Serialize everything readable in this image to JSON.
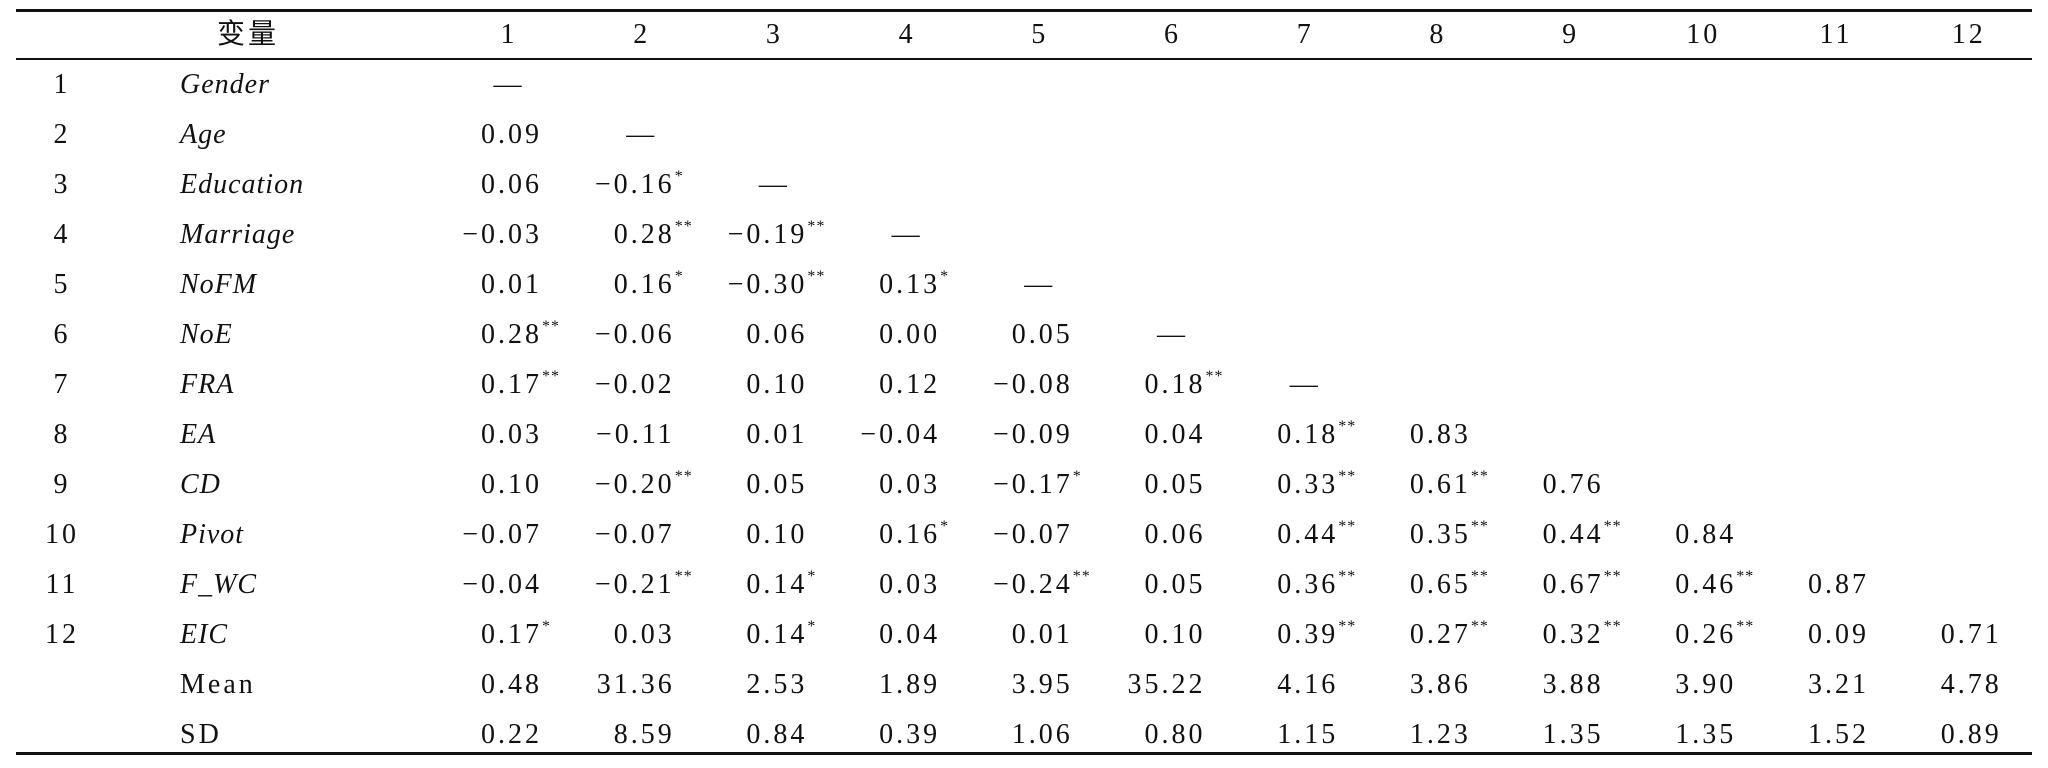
{
  "table": {
    "header": [
      "变量",
      "1",
      "2",
      "3",
      "4",
      "5",
      "6",
      "7",
      "8",
      "9",
      "10",
      "11",
      "12"
    ],
    "rows": [
      {
        "no": "1",
        "name": "Gender",
        "cells": [
          "—"
        ]
      },
      {
        "no": "2",
        "name": "Age",
        "cells": [
          "0.09",
          "—"
        ]
      },
      {
        "no": "3",
        "name": "Education",
        "cells": [
          "0.06",
          "−0.16*",
          "—"
        ]
      },
      {
        "no": "4",
        "name": "Marriage",
        "cells": [
          "−0.03",
          "0.28**",
          "−0.19**",
          "—"
        ]
      },
      {
        "no": "5",
        "name": "NoFM",
        "cells": [
          "0.01",
          "0.16*",
          "−0.30**",
          "0.13*",
          "—"
        ]
      },
      {
        "no": "6",
        "name": "NoE",
        "cells": [
          "0.28**",
          "−0.06",
          "0.06",
          "0.00",
          "0.05",
          "—"
        ]
      },
      {
        "no": "7",
        "name": "FRA",
        "cells": [
          "0.17**",
          "−0.02",
          "0.10",
          "0.12",
          "−0.08",
          "0.18**",
          "—"
        ]
      },
      {
        "no": "8",
        "name": "EA",
        "cells": [
          "0.03",
          "−0.11",
          "0.01",
          "−0.04",
          "−0.09",
          "0.04",
          "0.18**",
          "0.83"
        ]
      },
      {
        "no": "9",
        "name": "CD",
        "cells": [
          "0.10",
          "−0.20**",
          "0.05",
          "0.03",
          "−0.17*",
          "0.05",
          "0.33**",
          "0.61**",
          "0.76"
        ]
      },
      {
        "no": "10",
        "name": "Pivot",
        "cells": [
          "−0.07",
          "−0.07",
          "0.10",
          "0.16*",
          "−0.07",
          "0.06",
          "0.44**",
          "0.35**",
          "0.44**",
          "0.84"
        ]
      },
      {
        "no": "11",
        "name": "F_WC",
        "cells": [
          "−0.04",
          "−0.21**",
          "0.14*",
          "0.03",
          "−0.24**",
          "0.05",
          "0.36**",
          "0.65**",
          "0.67**",
          "0.46**",
          "0.87"
        ]
      },
      {
        "no": "12",
        "name": "EIC",
        "cells": [
          "0.17*",
          "0.03",
          "0.14*",
          "0.04",
          "0.01",
          "0.10",
          "0.39**",
          "0.27**",
          "0.32**",
          "0.26**",
          "0.09",
          "0.71"
        ]
      },
      {
        "name": "Mean",
        "cells": [
          "0.48",
          "31.36",
          "2.53",
          "1.89",
          "3.95",
          "35.22",
          "4.16",
          "3.86",
          "3.88",
          "3.90",
          "3.21",
          "4.78"
        ]
      },
      {
        "name": "SD",
        "cells": [
          "0.22",
          "8.59",
          "0.84",
          "0.39",
          "1.06",
          "0.80",
          "1.15",
          "1.23",
          "1.35",
          "1.35",
          "1.52",
          "0.89"
        ]
      }
    ]
  }
}
